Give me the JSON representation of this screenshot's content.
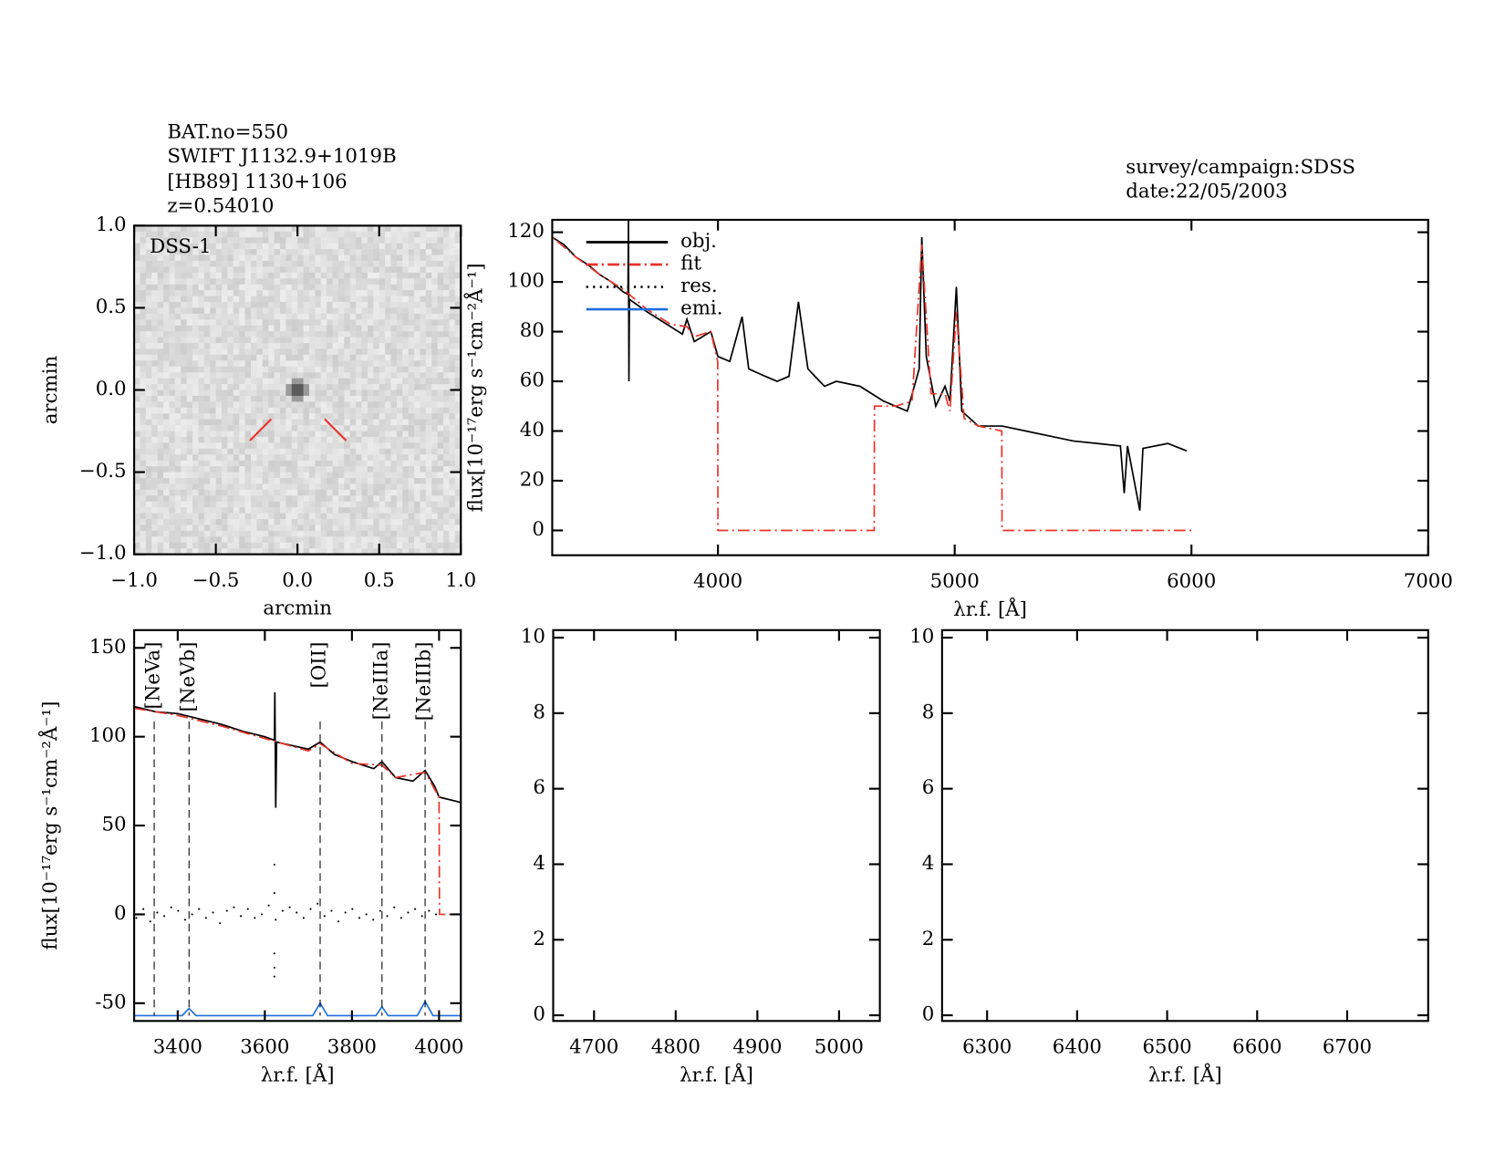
{
  "header": {
    "object": [
      "BAT.no=550",
      "SWIFT J1132.9+1019B",
      "[HB89] 1130+106",
      "z=0.54010"
    ],
    "survey": "survey/campaign:SDSS",
    "date": "date:22/05/2003"
  },
  "chart_data": [
    {
      "type": "image",
      "label": "DSS-1",
      "xlabel": "arcmin",
      "ylabel": "arcmin",
      "xlim": [
        -1,
        1
      ],
      "ylim": [
        -1,
        1
      ],
      "xticks": [
        {
          "value": -1,
          "label": "−1.0"
        },
        {
          "value": -0.5,
          "label": "−0.5"
        },
        {
          "value": 0,
          "label": "0.0"
        },
        {
          "value": 0.5,
          "label": "0.5"
        },
        {
          "value": 1,
          "label": "1.0"
        }
      ],
      "yticks": [
        {
          "value": -1,
          "label": "−1.0"
        },
        {
          "value": -0.5,
          "label": "−0.5"
        },
        {
          "value": 0,
          "label": "0.0"
        },
        {
          "value": 0.5,
          "label": "0.5"
        },
        {
          "value": 1,
          "label": "1.0"
        }
      ]
    },
    {
      "type": "line",
      "xlabel": "λr.f. [Å]",
      "ylabel": "flux[10⁻¹⁷erg s⁻¹cm⁻²Å⁻¹]",
      "xlim": [
        3300,
        7000
      ],
      "ylim": [
        -10,
        125
      ],
      "xticks": [
        4000,
        5000,
        6000,
        7000
      ],
      "yticks": [
        0,
        20,
        40,
        60,
        80,
        100,
        120
      ],
      "legend": [
        {
          "label": "obj.",
          "color": "#000000",
          "style": "solid"
        },
        {
          "label": "fit",
          "color": "#e8332b",
          "style": "dashdot"
        },
        {
          "label": "res.",
          "color": "#000000",
          "style": "dotted"
        },
        {
          "label": "emi.",
          "color": "#1f6fe0",
          "style": "solid"
        }
      ],
      "series": [
        {
          "color": "#000000",
          "style": "solid",
          "x": [
            3300,
            3350,
            3400,
            3450,
            3500,
            3550,
            3600,
            3620,
            3622,
            3624,
            3626,
            3700,
            3800,
            3850,
            3869,
            3900,
            3970,
            4000,
            4050,
            4102,
            4130,
            4200,
            4250,
            4300,
            4340,
            4380,
            4450,
            4500,
            4600,
            4700,
            4800,
            4850,
            4861,
            4880,
            4920,
            4959,
            4980,
            5007,
            5030,
            5100,
            5200,
            5300,
            5400,
            5500,
            5600,
            5700,
            5716,
            5730,
            5782,
            5795,
            5900,
            5980
          ],
          "values": [
            118,
            115,
            110,
            107,
            103,
            100,
            96,
            95,
            125,
            60,
            93,
            88,
            82,
            79,
            85,
            76,
            80,
            70,
            68,
            86,
            65,
            62,
            60,
            62,
            92,
            65,
            58,
            60,
            58,
            52,
            48,
            65,
            118,
            70,
            50,
            58,
            52,
            98,
            48,
            42,
            42,
            40,
            38,
            36,
            35,
            34,
            15,
            34,
            8,
            33,
            35,
            32
          ]
        },
        {
          "color": "#e8332b",
          "style": "dashdot",
          "x": [
            3300,
            3301,
            3400,
            3500,
            3600,
            3700,
            3800,
            3869,
            3900,
            3970,
            3999,
            4000,
            4660,
            4661,
            4750,
            4820,
            4861,
            4900,
            4959,
            4980,
            5007,
            5040,
            5100,
            5199,
            5200,
            6000
          ],
          "values": [
            0,
            118,
            110,
            103,
            97,
            89,
            83,
            82,
            78,
            80,
            68,
            0,
            0,
            50,
            50,
            52,
            115,
            55,
            55,
            48,
            88,
            45,
            42,
            40,
            0,
            0
          ]
        }
      ]
    },
    {
      "type": "line",
      "xlabel": "λr.f. [Å]",
      "ylabel": "flux[10⁻¹⁷erg s⁻¹cm⁻²Å⁻¹]",
      "xlim": [
        3300,
        4050
      ],
      "ylim": [
        -60,
        160
      ],
      "xticks": [
        3400,
        3600,
        3800,
        4000
      ],
      "yticks": [
        -50,
        0,
        50,
        100,
        150
      ],
      "line_labels": [
        {
          "label": "[NeVa]",
          "x": 3346,
          "color": "#e8332b"
        },
        {
          "label": "[NeVb]",
          "x": 3426,
          "color": "#e8332b"
        },
        {
          "label": "[OII]",
          "x": 3727,
          "color": "#e8332b"
        },
        {
          "label": "[NeIIIa]",
          "x": 3869,
          "color": "#e8332b"
        },
        {
          "label": "[NeIIIb]",
          "x": 3968,
          "color": "#000000"
        }
      ],
      "series": [
        {
          "color": "#000000",
          "style": "solid",
          "x": [
            3300,
            3350,
            3400,
            3450,
            3500,
            3550,
            3600,
            3622,
            3623,
            3625,
            3627,
            3700,
            3727,
            3760,
            3800,
            3850,
            3869,
            3900,
            3940,
            3968,
            3990,
            4000,
            4050
          ],
          "values": [
            117,
            114,
            113,
            110,
            107,
            103,
            100,
            98,
            125,
            60,
            97,
            93,
            97,
            90,
            86,
            82,
            86,
            77,
            75,
            81,
            72,
            66,
            63
          ]
        },
        {
          "color": "#e8332b",
          "style": "dashdot",
          "x": [
            3300,
            3400,
            3500,
            3600,
            3700,
            3727,
            3800,
            3869,
            3900,
            3968,
            4000,
            4001,
            4050
          ],
          "values": [
            116,
            112,
            106,
            99,
            92,
            96,
            85,
            84,
            77,
            80,
            66,
            0,
            0
          ]
        },
        {
          "color": "#000000",
          "style": "points",
          "x": [
            3305,
            3321,
            3337,
            3353,
            3369,
            3385,
            3401,
            3417,
            3433,
            3449,
            3465,
            3481,
            3497,
            3513,
            3529,
            3545,
            3561,
            3577,
            3593,
            3609,
            3625,
            3641,
            3657,
            3673,
            3689,
            3705,
            3721,
            3737,
            3753,
            3769,
            3785,
            3801,
            3817,
            3833,
            3849,
            3865,
            3881,
            3897,
            3913,
            3929,
            3945,
            3961,
            3977,
            3993,
            3622,
            3622,
            3622,
            3622,
            3622
          ],
          "values": [
            -2,
            3,
            -4,
            1,
            -1,
            4,
            2,
            -3,
            0,
            3,
            -2,
            1,
            -5,
            2,
            4,
            -1,
            3,
            -2,
            0,
            5,
            -3,
            2,
            4,
            1,
            -2,
            3,
            6,
            -1,
            2,
            -4,
            1,
            3,
            -2,
            0,
            -3,
            2,
            -1,
            4,
            -2,
            1,
            3,
            -1,
            2,
            0,
            28,
            12,
            -22,
            -30,
            -35
          ]
        },
        {
          "color": "#1f6fe0",
          "style": "solid",
          "x": [
            3300,
            3410,
            3426,
            3442,
            3710,
            3727,
            3744,
            3855,
            3869,
            3883,
            3950,
            3968,
            3986,
            4050
          ],
          "values": [
            -57,
            -57,
            -53,
            -57,
            -57,
            -50,
            -57,
            -57,
            -52,
            -57,
            -57,
            -49,
            -57,
            -57
          ]
        }
      ]
    },
    {
      "type": "line",
      "xlabel": "λr.f. [Å]",
      "xlim": [
        4650,
        5050
      ],
      "ylim": [
        -0.15,
        10.2
      ],
      "xticks": [
        4700,
        4800,
        4900,
        5000
      ],
      "yticks": [
        0,
        2,
        4,
        6,
        8,
        10
      ],
      "series": []
    },
    {
      "type": "line",
      "xlabel": "λr.f. [Å]",
      "xlim": [
        6250,
        6790
      ],
      "ylim": [
        -0.15,
        10.2
      ],
      "xticks": [
        6300,
        6400,
        6500,
        6600,
        6700
      ],
      "yticks": [
        0,
        2,
        4,
        6,
        8,
        10
      ],
      "series": []
    }
  ]
}
